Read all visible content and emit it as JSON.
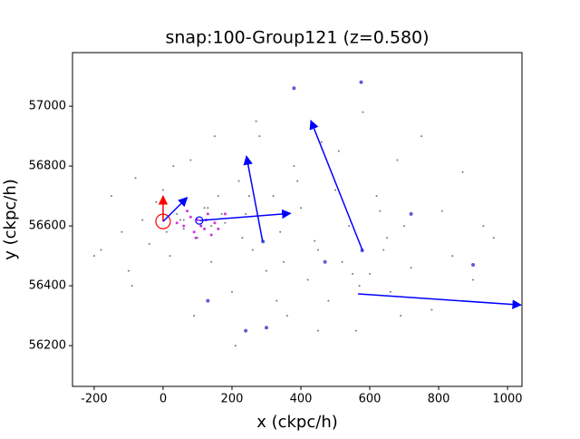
{
  "chart_data": {
    "type": "scatter",
    "title": "snap:100-Group121 (z=0.580)",
    "xlabel": "x (ckpc/h)",
    "ylabel": "y (ckpc/h)",
    "xlim": [
      -263,
      1042
    ],
    "ylim": [
      56064,
      57179
    ],
    "xticks": [
      -200,
      0,
      200,
      400,
      600,
      800,
      1000
    ],
    "yticks": [
      56200,
      56400,
      56600,
      56800,
      57000
    ],
    "series": [
      {
        "color": "#555555",
        "size": 1,
        "x": [
          -180,
          -150,
          -120,
          -100,
          -80,
          -60,
          -40,
          -20,
          0,
          20,
          40,
          60,
          80,
          100,
          120,
          140,
          160,
          180,
          200,
          220,
          240,
          260,
          280,
          300,
          320,
          340,
          360,
          380,
          400,
          420,
          440,
          460,
          480,
          500,
          520,
          540,
          560,
          580,
          600,
          620,
          640,
          660,
          680,
          700,
          720,
          750,
          780,
          810,
          840,
          870,
          900,
          930,
          960,
          -200,
          -90,
          30,
          90,
          150,
          210,
          270,
          330,
          390,
          450,
          510,
          570,
          630,
          690,
          110,
          170,
          230,
          50,
          10,
          130,
          250,
          350,
          450,
          550,
          650,
          60,
          140
        ],
        "y": [
          56520,
          56700,
          56580,
          56450,
          56760,
          56620,
          56540,
          56680,
          56720,
          56500,
          56640,
          56590,
          56820,
          56560,
          56660,
          56480,
          56700,
          56610,
          56380,
          56750,
          56640,
          56520,
          56900,
          56450,
          56700,
          56580,
          56300,
          56800,
          56660,
          56420,
          56550,
          56880,
          56350,
          56720,
          56480,
          56600,
          56250,
          56980,
          56440,
          56700,
          56520,
          56380,
          56820,
          56600,
          56460,
          56900,
          56320,
          56650,
          56500,
          56780,
          56420,
          56600,
          56560,
          56500,
          56400,
          56800,
          56300,
          56900,
          56200,
          56950,
          56350,
          56750,
          56250,
          56850,
          56400,
          56650,
          56300,
          56600,
          56640,
          56560,
          56620,
          56580,
          56660,
          56700,
          56480,
          56520,
          56440,
          56560,
          56620,
          56600
        ]
      },
      {
        "color": "#cc00cc",
        "size": 1.5,
        "x": [
          60,
          80,
          90,
          100,
          110,
          120,
          130,
          140,
          150,
          70,
          95,
          125,
          160,
          180,
          40
        ],
        "y": [
          56600,
          56630,
          56580,
          56620,
          56600,
          56590,
          56640,
          56570,
          56610,
          56650,
          56560,
          56620,
          56590,
          56640,
          56610
        ]
      },
      {
        "color": "#3333cc",
        "size": 2,
        "x": [
          290,
          578,
          575,
          380,
          300,
          720,
          130,
          470,
          900,
          240
        ],
        "y": [
          56548,
          56518,
          57080,
          57060,
          56260,
          56640,
          56350,
          56480,
          56470,
          56250
        ]
      }
    ],
    "circles": [
      {
        "x": 0,
        "y": 56615,
        "color": "#ff0000",
        "r": 8
      },
      {
        "x": 105,
        "y": 56618,
        "color": "#0000ff",
        "r": 4
      }
    ],
    "arrows": [
      {
        "x": 0,
        "y": 56615,
        "x_end": 0,
        "y_end": 56700,
        "color": "#ff0000"
      },
      {
        "x": 0,
        "y": 56615,
        "x_end": 70,
        "y_end": 56695,
        "color": "#0000ff"
      },
      {
        "x": 105,
        "y": 56618,
        "x_end": 370,
        "y_end": 56642,
        "color": "#0000ff"
      },
      {
        "x": 289,
        "y": 56548,
        "x_end": 242,
        "y_end": 56833,
        "color": "#0000ff"
      },
      {
        "x": 579,
        "y": 56518,
        "x_end": 429,
        "y_end": 56952,
        "color": "#0000ff"
      },
      {
        "x": 566,
        "y": 56373,
        "x_end": 1039,
        "y_end": 56336,
        "color": "#0000ff"
      }
    ]
  }
}
